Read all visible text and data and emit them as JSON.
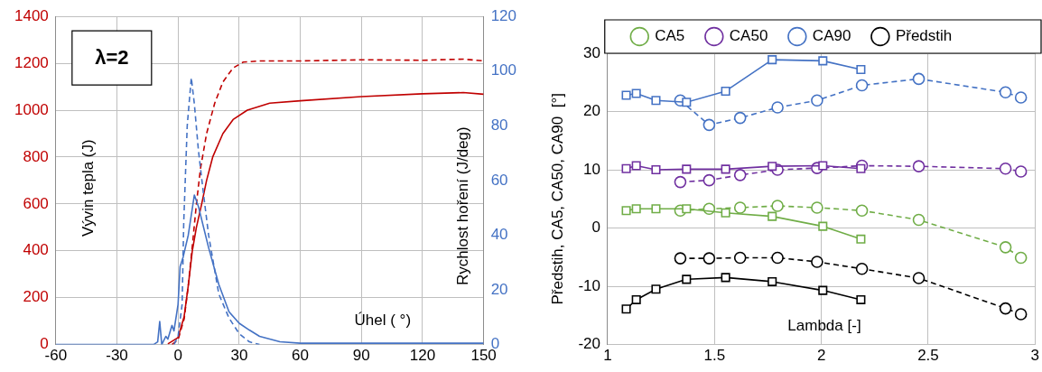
{
  "chart_data": [
    {
      "type": "line",
      "ylabel": "Vývin tepla (J)",
      "y2label": "Rychlost hoření (J/deg)",
      "xlabel": "Úhel ( °)",
      "annotations": [
        "λ=2"
      ],
      "xlim": [
        -60,
        150
      ],
      "xticks": [
        -60,
        -30,
        0,
        30,
        60,
        90,
        120,
        150
      ],
      "ylim": [
        0,
        1400
      ],
      "yticks": [
        0,
        200,
        400,
        600,
        800,
        1000,
        1200,
        1400
      ],
      "y2lim": [
        0,
        120
      ],
      "y2ticks": [
        0,
        20,
        40,
        60,
        80,
        100,
        120
      ],
      "grid": true,
      "legend": false,
      "marker": "none",
      "series": [
        {
          "color": "#c00000",
          "line_style": "solid",
          "x": [
            -5,
            0,
            3,
            5,
            7,
            9,
            11.6,
            14,
            17,
            22,
            27,
            34,
            45,
            60,
            90,
            120,
            140,
            150
          ],
          "values": [
            3,
            30,
            120,
            250,
            400,
            500,
            600,
            700,
            800,
            900,
            960,
            1000,
            1030,
            1040,
            1058,
            1070,
            1075,
            1068
          ]
        },
        {
          "color": "#c00000",
          "line_style": "dashed",
          "x": [
            -3,
            0,
            3,
            5,
            7,
            9,
            11,
            14,
            18,
            22,
            27,
            32,
            40,
            60,
            90,
            120,
            140,
            150
          ],
          "values": [
            0,
            20,
            110,
            250,
            420,
            600,
            750,
            900,
            1030,
            1120,
            1180,
            1205,
            1210,
            1210,
            1215,
            1213,
            1218,
            1210
          ]
        },
        {
          "color": "#4472c4",
          "line_style": "dashed",
          "axis": "y2",
          "x": [
            -2,
            0,
            2,
            2.8,
            4.5,
            6.5,
            8,
            10,
            12.5,
            15,
            20,
            25,
            30,
            35,
            40
          ],
          "values": [
            0,
            3,
            14.7,
            45,
            80,
            97.6,
            88,
            71,
            55,
            40,
            18.5,
            9.7,
            4,
            1,
            0
          ]
        },
        {
          "color": "#4472c4",
          "line_style": "solid",
          "axis": "y2",
          "x": [
            -60,
            -12,
            -10,
            -9,
            -8,
            -6,
            -5,
            -3,
            -2,
            0,
            1,
            2.5,
            5,
            8,
            10,
            15,
            20,
            25,
            30,
            35,
            40,
            50,
            60,
            90,
            120,
            150
          ],
          "values": [
            0,
            0,
            1,
            8.4,
            0,
            3,
            2,
            7,
            5,
            14.7,
            28.5,
            32,
            40,
            54.7,
            50.5,
            35.4,
            22,
            12,
            7.8,
            5.3,
            3,
            1,
            0.5,
            0.5,
            0.5,
            0.5
          ]
        }
      ]
    },
    {
      "type": "line",
      "ylabel": "Předstih, CA5, CA50, CA90  [°]",
      "xlabel": "Lambda [-]",
      "xlim": [
        1,
        3
      ],
      "xticks": [
        1,
        1.5,
        2,
        2.5,
        3
      ],
      "ylim": [
        -20,
        30
      ],
      "yticks": [
        -20,
        -10,
        0,
        10,
        20,
        30
      ],
      "grid": true,
      "legend": "top",
      "series": [
        {
          "name": "CA5",
          "color": "#70ad47",
          "line_style": "dashed",
          "marker": "circle",
          "x": [
            1.34,
            1.475,
            1.62,
            1.795,
            1.98,
            2.19,
            2.456,
            2.862,
            2.934
          ],
          "values": [
            3.0,
            3.3,
            3.5,
            3.8,
            3.5,
            3.0,
            1.4,
            -3.3,
            -5.1
          ]
        },
        {
          "name": "CA50",
          "color": "#7030a0",
          "line_style": "dashed",
          "marker": "circle",
          "x": [
            1.34,
            1.475,
            1.62,
            1.795,
            1.98,
            2.19,
            2.456,
            2.862,
            2.934
          ],
          "values": [
            7.9,
            8.2,
            9.1,
            10.0,
            10.3,
            10.7,
            10.6,
            10.2,
            9.7
          ]
        },
        {
          "name": "CA90",
          "color": "#4472c4",
          "line_style": "dashed",
          "marker": "circle",
          "x": [
            1.34,
            1.475,
            1.62,
            1.795,
            1.98,
            2.19,
            2.456,
            2.862,
            2.934
          ],
          "values": [
            21.9,
            17.7,
            18.9,
            20.7,
            21.9,
            24.5,
            25.6,
            23.3,
            22.4
          ]
        },
        {
          "name": "Předstih",
          "color": "#000000",
          "line_style": "dashed",
          "marker": "circle",
          "x": [
            1.34,
            1.475,
            1.62,
            1.795,
            1.98,
            2.19,
            2.456,
            2.862,
            2.934
          ],
          "values": [
            -5.2,
            -5.2,
            -5.1,
            -5.1,
            -5.8,
            -7.0,
            -8.6,
            -13.8,
            -14.8
          ]
        },
        {
          "color": "#70ad47",
          "line_style": "solid",
          "marker": "square",
          "x": [
            1.087,
            1.134,
            1.226,
            1.369,
            1.552,
            1.77,
            2.007,
            2.185
          ],
          "values": [
            3.0,
            3.3,
            3.3,
            3.3,
            2.6,
            2.0,
            0.3,
            -1.9
          ]
        },
        {
          "color": "#7030a0",
          "line_style": "solid",
          "marker": "square",
          "x": [
            1.087,
            1.134,
            1.226,
            1.369,
            1.552,
            1.77,
            2.007,
            2.185
          ],
          "values": [
            10.2,
            10.7,
            10.0,
            10.1,
            10.1,
            10.6,
            10.7,
            10.2
          ]
        },
        {
          "color": "#4472c4",
          "line_style": "solid",
          "marker": "square",
          "x": [
            1.087,
            1.134,
            1.226,
            1.369,
            1.552,
            1.77,
            2.007,
            2.185
          ],
          "values": [
            22.8,
            23.1,
            21.9,
            21.6,
            23.5,
            28.9,
            28.7,
            27.2
          ]
        },
        {
          "color": "#000000",
          "line_style": "solid",
          "marker": "square",
          "x": [
            1.087,
            1.134,
            1.226,
            1.369,
            1.552,
            1.77,
            2.007,
            2.185
          ],
          "values": [
            -13.9,
            -12.3,
            -10.5,
            -8.8,
            -8.5,
            -9.2,
            -10.7,
            -12.3
          ]
        }
      ]
    }
  ]
}
